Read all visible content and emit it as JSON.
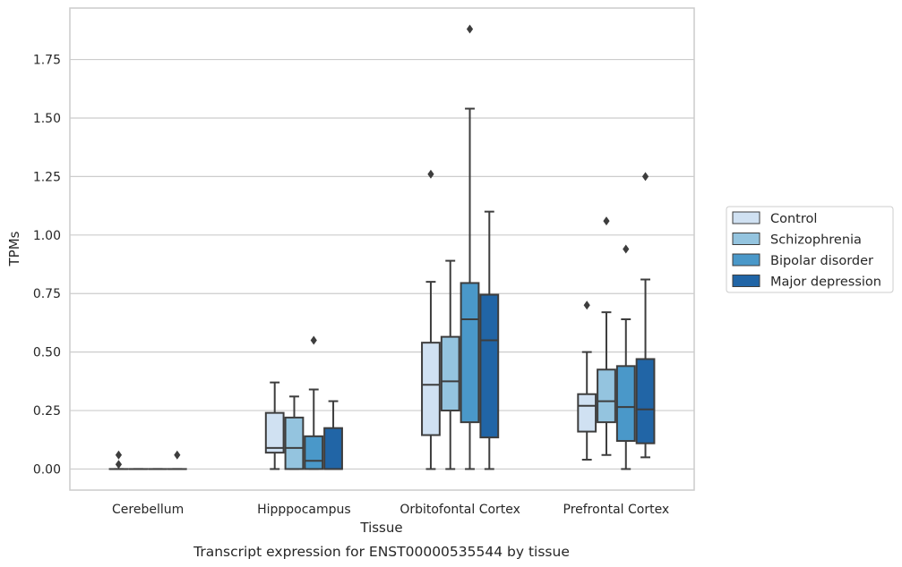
{
  "caption": "Transcript expression for ENST00000535544 by tissue",
  "chart_data": {
    "type": "box",
    "xlabel": "Tissue",
    "ylabel": "TPMs",
    "ylim": [
      -0.09,
      1.97
    ],
    "yticks": [
      "0.00",
      "0.25",
      "0.50",
      "0.75",
      "1.00",
      "1.25",
      "1.50",
      "1.75"
    ],
    "grid": "horizontal",
    "legend_position": "right",
    "categories": [
      "Cerebellum",
      "Hipppocampus",
      "Orbitofontal Cortex",
      "Prefrontal Cortex"
    ],
    "series": [
      {
        "name": "Control",
        "color": "#d0e1f2",
        "boxes": [
          {
            "whislo": 0.0,
            "q1": 0.0,
            "med": 0.0,
            "q3": 0.0,
            "whishi": 0.0,
            "fliers": [
              0.06,
              0.02
            ]
          },
          {
            "whislo": 0.0,
            "q1": 0.07,
            "med": 0.09,
            "q3": 0.24,
            "whishi": 0.37,
            "fliers": []
          },
          {
            "whislo": 0.0,
            "q1": 0.145,
            "med": 0.36,
            "q3": 0.54,
            "whishi": 0.8,
            "fliers": [
              1.26
            ]
          },
          {
            "whislo": 0.04,
            "q1": 0.16,
            "med": 0.27,
            "q3": 0.32,
            "whishi": 0.5,
            "fliers": [
              0.7
            ]
          }
        ]
      },
      {
        "name": "Schizophrenia",
        "color": "#94c4df",
        "boxes": [
          {
            "whislo": 0.0,
            "q1": 0.0,
            "med": 0.0,
            "q3": 0.0,
            "whishi": 0.0,
            "fliers": []
          },
          {
            "whislo": 0.0,
            "q1": 0.0,
            "med": 0.09,
            "q3": 0.22,
            "whishi": 0.31,
            "fliers": []
          },
          {
            "whislo": 0.0,
            "q1": 0.25,
            "med": 0.375,
            "q3": 0.565,
            "whishi": 0.89,
            "fliers": []
          },
          {
            "whislo": 0.06,
            "q1": 0.2,
            "med": 0.29,
            "q3": 0.425,
            "whishi": 0.67,
            "fliers": [
              1.06
            ]
          }
        ]
      },
      {
        "name": "Bipolar disorder",
        "color": "#4a98c9",
        "boxes": [
          {
            "whislo": 0.0,
            "q1": 0.0,
            "med": 0.0,
            "q3": 0.0,
            "whishi": 0.0,
            "fliers": []
          },
          {
            "whislo": 0.0,
            "q1": 0.0,
            "med": 0.035,
            "q3": 0.14,
            "whishi": 0.34,
            "fliers": [
              0.55
            ]
          },
          {
            "whislo": 0.0,
            "q1": 0.2,
            "med": 0.64,
            "q3": 0.795,
            "whishi": 1.54,
            "fliers": [
              1.88
            ]
          },
          {
            "whislo": 0.0,
            "q1": 0.12,
            "med": 0.265,
            "q3": 0.44,
            "whishi": 0.64,
            "fliers": [
              0.94
            ]
          }
        ]
      },
      {
        "name": "Major depression",
        "color": "#2165a6",
        "boxes": [
          {
            "whislo": 0.0,
            "q1": 0.0,
            "med": 0.0,
            "q3": 0.0,
            "whishi": 0.0,
            "fliers": [
              0.06
            ]
          },
          {
            "whislo": 0.0,
            "q1": 0.0,
            "med": 0.0,
            "q3": 0.175,
            "whishi": 0.29,
            "fliers": []
          },
          {
            "whislo": 0.0,
            "q1": 0.135,
            "med": 0.55,
            "q3": 0.745,
            "whishi": 1.1,
            "fliers": []
          },
          {
            "whislo": 0.05,
            "q1": 0.11,
            "med": 0.255,
            "q3": 0.47,
            "whishi": 0.81,
            "fliers": [
              1.25
            ]
          }
        ]
      }
    ]
  }
}
